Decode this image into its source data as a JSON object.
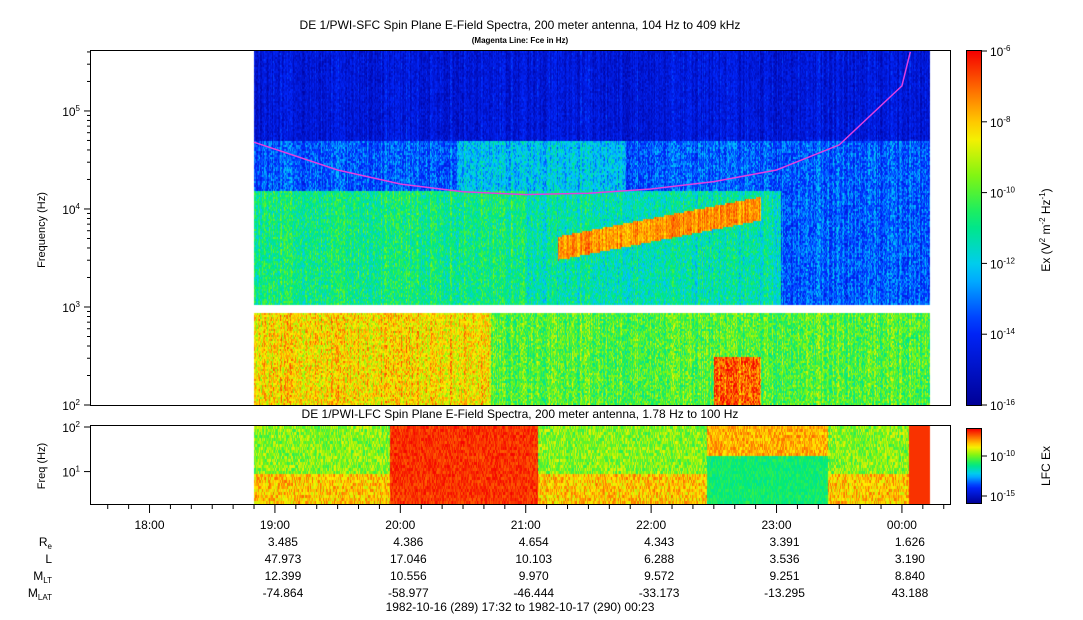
{
  "chart_data": [
    {
      "type": "heatmap",
      "title": "DE 1/PWI-SFC  Spin Plane E-Field Spectra, 200 meter antenna, 104 Hz to 409 kHz",
      "subtitle": "(Magenta Line: Fce in Hz)",
      "ylabel": "Frequency (Hz)",
      "y_scale": "log",
      "ylim": [
        100,
        409000
      ],
      "y_ticks": [
        {
          "v": 100,
          "label": "10",
          "exp": "2"
        },
        {
          "v": 1000,
          "label": "10",
          "exp": "3"
        },
        {
          "v": 10000,
          "label": "10",
          "exp": "4"
        },
        {
          "v": 100000,
          "label": "10",
          "exp": "5"
        }
      ],
      "xlim": [
        "17:32",
        "00:23"
      ],
      "data_start": "18:50",
      "data_end": "00:13",
      "colorbar": {
        "label": "Ex (V",
        "label_parts": [
          "Ex (V",
          "2",
          " m",
          "-2",
          " Hz",
          "-1",
          ")"
        ],
        "scale": "log",
        "range": [
          1e-16,
          1e-06
        ],
        "ticks": [
          {
            "v": "-6",
            "label": "10"
          },
          {
            "v": "-8",
            "label": "10"
          },
          {
            "v": "-10",
            "label": "10"
          },
          {
            "v": "-12",
            "label": "10"
          },
          {
            "v": "-14",
            "label": "10"
          },
          {
            "v": "-16",
            "label": "10"
          }
        ]
      },
      "fce_line": {
        "name": "Fce",
        "color": "#e040e0",
        "times": [
          "18:50",
          "19:30",
          "20:00",
          "20:30",
          "21:00",
          "21:30",
          "22:00",
          "22:30",
          "23:00",
          "23:30",
          "00:00",
          "00:04"
        ],
        "values": [
          48000,
          25000,
          18000,
          15000,
          14000,
          14500,
          16000,
          19000,
          25000,
          45000,
          180000,
          400000
        ]
      }
    },
    {
      "type": "heatmap",
      "title": "DE 1/PWI-LFC  Spin Plane E-Field Spectra, 200 meter antenna, 1.78 Hz to 100 Hz",
      "ylabel": "Freq (Hz)",
      "y_scale": "log",
      "ylim": [
        1.78,
        100
      ],
      "y_ticks": [
        {
          "v": 10,
          "label": "10",
          "exp": "1"
        },
        {
          "v": 100,
          "label": "10",
          "exp": "2"
        }
      ],
      "colorbar": {
        "label": "LFC Ex",
        "scale": "log",
        "ticks": [
          {
            "v": "-10",
            "label": "10"
          },
          {
            "v": "-15",
            "label": "10"
          }
        ]
      }
    }
  ],
  "x_axis": {
    "ticks": [
      "18:00",
      "19:00",
      "20:00",
      "21:00",
      "22:00",
      "23:00",
      "00:00"
    ]
  },
  "ephemeris": {
    "rows": [
      {
        "label": "R",
        "sub": "e",
        "values": [
          "3.485",
          "4.386",
          "4.654",
          "4.343",
          "3.391",
          "1.626"
        ]
      },
      {
        "label": "L",
        "sub": "",
        "values": [
          "47.973",
          "17.046",
          "10.103",
          "6.288",
          "3.536",
          "3.190"
        ]
      },
      {
        "label": "M",
        "sub": "LT",
        "values": [
          "12.399",
          "10.556",
          "9.970",
          "9.572",
          "9.251",
          "8.840"
        ]
      },
      {
        "label": "M",
        "sub": "LAT",
        "values": [
          "-74.864",
          "-58.977",
          "-46.444",
          "-33.173",
          "-13.295",
          "43.188"
        ]
      }
    ]
  },
  "time_range": "1982-10-16 (289) 17:32 to 1982-10-17 (290) 00:23"
}
